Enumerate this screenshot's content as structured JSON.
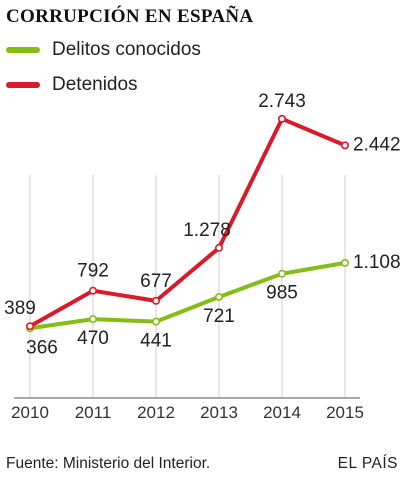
{
  "chart_data": {
    "type": "line",
    "title": "CORRUPCIÓN EN ESPAÑA",
    "categories": [
      "2010",
      "2011",
      "2012",
      "2013",
      "2014",
      "2015"
    ],
    "series": [
      {
        "name": "Delitos conocidos",
        "color": "#84bd17",
        "values": [
          366,
          470,
          441,
          721,
          985,
          1108
        ],
        "labels": [
          "366",
          "470",
          "441",
          "721",
          "985",
          "1.108"
        ]
      },
      {
        "name": "Detenidos",
        "color": "#d91a2a",
        "values": [
          389,
          792,
          677,
          1278,
          2743,
          2442
        ],
        "labels": [
          "389",
          "792",
          "677",
          "1.278",
          "2.743",
          "2.442"
        ]
      }
    ],
    "ylim": [
      0,
      3000
    ],
    "grid": "vertical"
  },
  "footer": {
    "source": "Fuente: Ministerio del Interior.",
    "brand": "EL PAÍS"
  }
}
